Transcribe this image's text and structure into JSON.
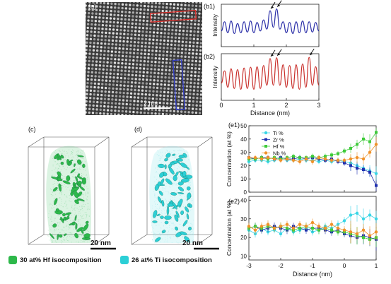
{
  "panels": {
    "a": "(a)",
    "b1": "(b1)",
    "b2": "(b2)",
    "c": "(c)",
    "d": "(d)",
    "e1": "(e1)",
    "e2": "(e2)"
  },
  "tem_scalebar": "2 nm",
  "b_plots": {
    "ylabel": "Intensity",
    "xlabel": "Distance (nm)",
    "xticks": [
      "0",
      "1",
      "2",
      "3"
    ]
  },
  "atom_probe": {
    "c_scalebar": "20 nm",
    "d_scalebar": "20 nm",
    "c_legend": "30 at% Hf isocomposition",
    "d_legend": "26 at% Ti isocomposition",
    "hf_color": "#2db84a",
    "ti_color": "#2ccfd6"
  },
  "e_plots": {
    "ylabel": "Concentration (at %)",
    "xlabel": "Distance (nm)",
    "xticks": [
      "-3",
      "-2",
      "-1",
      "0",
      "1"
    ],
    "e1_yticks": [
      "0",
      "10",
      "20",
      "30",
      "40",
      "50"
    ],
    "e2_yticks": [
      "10",
      "20",
      "30",
      "40"
    ],
    "legend": [
      "Ti %",
      "Zr %",
      "Hf %",
      "Nb %"
    ],
    "colors": {
      "Ti": "#38d6e6",
      "Zr": "#1f2fb0",
      "Hf": "#3ecb3a",
      "Nb": "#f0922a"
    }
  },
  "chart_data": [
    {
      "type": "line",
      "panel": "b1",
      "xlabel": "Distance (nm)",
      "ylabel": "Intensity",
      "xlim": [
        0,
        3
      ],
      "color": "#2b2fa8",
      "x": [
        0.0,
        0.1,
        0.2,
        0.3,
        0.4,
        0.5,
        0.6,
        0.7,
        0.8,
        0.9,
        1.0,
        1.1,
        1.2,
        1.3,
        1.4,
        1.5,
        1.6,
        1.7,
        1.8,
        1.9,
        2.0,
        2.1,
        2.2,
        2.3,
        2.4,
        2.5,
        2.6,
        2.7,
        2.8,
        2.9,
        3.0
      ],
      "y": [
        0.35,
        0.6,
        0.3,
        0.62,
        0.28,
        0.55,
        0.3,
        0.6,
        0.32,
        0.62,
        0.3,
        0.58,
        0.35,
        0.65,
        0.4,
        0.9,
        0.45,
        0.95,
        0.4,
        0.6,
        0.3,
        0.58,
        0.28,
        0.6,
        0.3,
        0.62,
        0.3,
        0.6,
        0.32,
        0.58,
        0.35
      ]
    },
    {
      "type": "line",
      "panel": "b2",
      "xlabel": "Distance (nm)",
      "ylabel": "Intensity",
      "xlim": [
        0,
        3
      ],
      "color": "#c9302c",
      "x": [
        0.0,
        0.1,
        0.2,
        0.3,
        0.4,
        0.5,
        0.6,
        0.7,
        0.8,
        0.9,
        1.0,
        1.1,
        1.2,
        1.3,
        1.4,
        1.5,
        1.6,
        1.7,
        1.8,
        1.9,
        2.0,
        2.1,
        2.2,
        2.3,
        2.4,
        2.5,
        2.6,
        2.7,
        2.8,
        2.9,
        3.0
      ],
      "y": [
        0.35,
        0.65,
        0.25,
        0.7,
        0.22,
        0.68,
        0.2,
        0.72,
        0.22,
        0.74,
        0.2,
        0.75,
        0.22,
        0.78,
        0.3,
        0.95,
        0.3,
        0.97,
        0.3,
        0.8,
        0.25,
        0.78,
        0.22,
        0.8,
        0.2,
        0.82,
        0.25,
        0.98,
        0.3,
        0.75,
        0.3
      ]
    },
    {
      "type": "line",
      "panel": "e1",
      "xlabel": "Distance (nm)",
      "ylabel": "Concentration (at %)",
      "xlim": [
        -3,
        1
      ],
      "ylim": [
        0,
        50
      ],
      "x": [
        -3.0,
        -2.8,
        -2.6,
        -2.4,
        -2.2,
        -2.0,
        -1.8,
        -1.6,
        -1.4,
        -1.2,
        -1.0,
        -0.8,
        -0.6,
        -0.4,
        -0.2,
        0.0,
        0.2,
        0.4,
        0.6,
        0.8,
        1.0
      ],
      "series": [
        {
          "name": "Ti %",
          "values": [
            23,
            24,
            24,
            23,
            24,
            25,
            24,
            24,
            25,
            24,
            24,
            23,
            24,
            23,
            24,
            23,
            22,
            20,
            18,
            16,
            14
          ]
        },
        {
          "name": "Zr %",
          "values": [
            26,
            25,
            26,
            26,
            25,
            26,
            25,
            25,
            26,
            25,
            26,
            25,
            24,
            25,
            23,
            22,
            20,
            18,
            17,
            15,
            5
          ]
        },
        {
          "name": "Hf %",
          "values": [
            25,
            25,
            26,
            25,
            26,
            25,
            26,
            27,
            26,
            26,
            27,
            26,
            27,
            28,
            29,
            31,
            33,
            36,
            40,
            38,
            45
          ]
        },
        {
          "name": "Nb %",
          "values": [
            26,
            26,
            25,
            26,
            25,
            24,
            25,
            24,
            23,
            25,
            23,
            26,
            25,
            24,
            24,
            24,
            25,
            26,
            25,
            30,
            36
          ]
        }
      ]
    },
    {
      "type": "line",
      "panel": "e2",
      "xlabel": "Distance (nm)",
      "ylabel": "Concentration (at %)",
      "xlim": [
        -3,
        1
      ],
      "ylim": [
        8,
        42
      ],
      "x": [
        -3.0,
        -2.8,
        -2.6,
        -2.4,
        -2.2,
        -2.0,
        -1.8,
        -1.6,
        -1.4,
        -1.2,
        -1.0,
        -0.8,
        -0.6,
        -0.4,
        -0.2,
        0.0,
        0.2,
        0.4,
        0.6,
        0.8,
        1.0
      ],
      "series": [
        {
          "name": "Ti %",
          "values": [
            24,
            22,
            25,
            23,
            24,
            22,
            25,
            23,
            24,
            25,
            23,
            24,
            26,
            25,
            27,
            29,
            32,
            33,
            30,
            32,
            30
          ]
        },
        {
          "name": "Zr %",
          "values": [
            25,
            26,
            24,
            25,
            26,
            25,
            24,
            26,
            25,
            24,
            25,
            25,
            24,
            23,
            24,
            22,
            21,
            20,
            21,
            20,
            19
          ]
        },
        {
          "name": "Hf %",
          "values": [
            25,
            26,
            25,
            26,
            25,
            26,
            25,
            24,
            25,
            26,
            25,
            24,
            25,
            24,
            23,
            23,
            22,
            21,
            20,
            19,
            20
          ]
        },
        {
          "name": "Nb %",
          "values": [
            26,
            24,
            26,
            27,
            25,
            26,
            27,
            25,
            27,
            26,
            28,
            26,
            25,
            27,
            25,
            24,
            23,
            22,
            24,
            21,
            23
          ]
        }
      ]
    }
  ]
}
